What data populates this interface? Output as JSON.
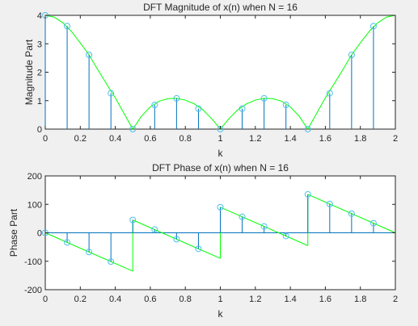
{
  "chart_data": [
    {
      "type": "line",
      "title": "DFT Magnitude of x(n) when N = 16",
      "xlabel": "k",
      "ylabel": "Magnitude Part",
      "xlim": [
        0,
        2
      ],
      "ylim": [
        0,
        4
      ],
      "xticks": [
        "0",
        "0.2",
        "0.4",
        "0.6",
        "0.8",
        "1",
        "1.2",
        "1.4",
        "1.6",
        "1.8",
        "2"
      ],
      "yticks": [
        "0",
        "1",
        "2",
        "3",
        "4"
      ],
      "stem_x": [
        0,
        0.125,
        0.25,
        0.375,
        0.5,
        0.625,
        0.75,
        0.875,
        1,
        1.125,
        1.25,
        1.375,
        1.5,
        1.625,
        1.75,
        1.875
      ],
      "stem_y": [
        4,
        3.62,
        2.61,
        1.26,
        0,
        0.85,
        1.08,
        0.72,
        0,
        0.72,
        1.08,
        0.85,
        0,
        1.26,
        2.61,
        3.62
      ],
      "curve_x": [
        0,
        0.05,
        0.1,
        0.15,
        0.2,
        0.25,
        0.3,
        0.35,
        0.4,
        0.45,
        0.5,
        0.55,
        0.6,
        0.65,
        0.7,
        0.75,
        0.8,
        0.85,
        0.9,
        0.95,
        1,
        1.05,
        1.1,
        1.15,
        1.2,
        1.25,
        1.3,
        1.35,
        1.4,
        1.45,
        1.5,
        1.55,
        1.6,
        1.65,
        1.7,
        1.75,
        1.8,
        1.85,
        1.9,
        1.95,
        2
      ],
      "curve_y": [
        4,
        3.94,
        3.74,
        3.43,
        3.03,
        2.61,
        2.09,
        1.59,
        1.1,
        0.55,
        0,
        0.46,
        0.78,
        0.98,
        1.07,
        1.08,
        1.02,
        0.89,
        0.68,
        0.37,
        0,
        0.37,
        0.68,
        0.89,
        1.02,
        1.08,
        1.07,
        0.98,
        0.78,
        0.46,
        0,
        0.55,
        1.1,
        1.59,
        2.09,
        2.61,
        3.03,
        3.43,
        3.74,
        3.94,
        4
      ],
      "stem_color": "#0072bd",
      "marker_color": "#4dbeee",
      "curve_color": "#00ff00"
    },
    {
      "type": "line",
      "title": "DFT Phase of x(n) when N = 16",
      "xlabel": "k",
      "ylabel": "Phase Part",
      "xlim": [
        0,
        2
      ],
      "ylim": [
        -200,
        200
      ],
      "xticks": [
        "0",
        "0.2",
        "0.4",
        "0.6",
        "0.8",
        "1",
        "1.2",
        "1.4",
        "1.6",
        "1.8",
        "2"
      ],
      "yticks": [
        "-200",
        "-100",
        "0",
        "100",
        "200"
      ],
      "stem_x": [
        0,
        0.125,
        0.25,
        0.375,
        0.5,
        0.625,
        0.75,
        0.875,
        1,
        1.125,
        1.25,
        1.375,
        1.5,
        1.625,
        1.75,
        1.875
      ],
      "stem_y": [
        0,
        -33.75,
        -67.5,
        -101.25,
        45,
        11.25,
        -22.5,
        -56.25,
        90,
        56.25,
        22.5,
        -11.25,
        135,
        101.25,
        67.5,
        33.75
      ],
      "curve_segments": [
        {
          "x": [
            0,
            0.5
          ],
          "y": [
            0,
            -135
          ]
        },
        {
          "x": [
            0.5,
            1
          ],
          "y": [
            45,
            -90
          ]
        },
        {
          "x": [
            1,
            1.5
          ],
          "y": [
            90,
            -45
          ]
        },
        {
          "x": [
            1.5,
            2
          ],
          "y": [
            135,
            0
          ]
        }
      ],
      "stem_color": "#0072bd",
      "marker_color": "#4dbeee",
      "curve_color": "#00ff00"
    }
  ]
}
